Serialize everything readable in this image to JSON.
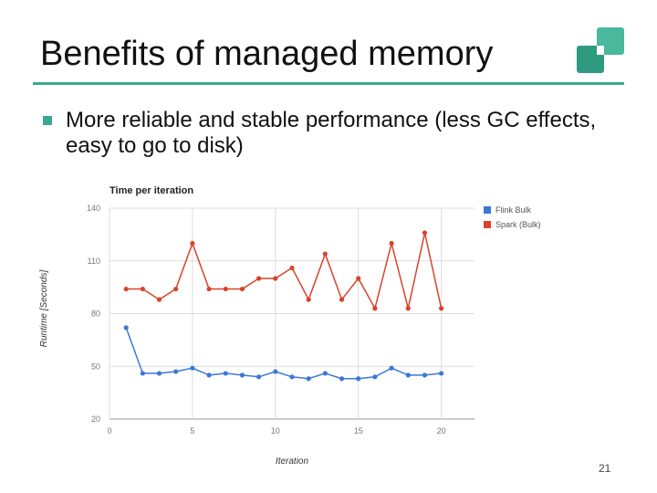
{
  "slide": {
    "title": "Benefits of managed memory",
    "bullet": "More reliable and stable performance (less GC effects, easy to go to disk)",
    "page_number": "21"
  },
  "colors": {
    "accent": "#3aa88f",
    "logo_dark": "#2e9b80",
    "logo_light": "#49b89b",
    "flink": "#3c78d8",
    "spark": "#d9432a"
  },
  "chart_data": {
    "type": "line",
    "title": "Time per iteration",
    "xlabel": "Iteration",
    "ylabel": "Runtime [Seconds]",
    "xlim": [
      0,
      22
    ],
    "ylim": [
      20,
      140
    ],
    "x_ticks": [
      0,
      5,
      10,
      15,
      20
    ],
    "y_ticks": [
      20,
      50,
      80,
      110,
      140
    ],
    "grid": true,
    "legend_position": "right",
    "series": [
      {
        "name": "Flink Bulk",
        "color": "#3c78d8",
        "x": [
          1,
          2,
          3,
          4,
          5,
          6,
          7,
          8,
          9,
          10,
          11,
          12,
          13,
          14,
          15,
          16,
          17,
          18,
          19,
          20
        ],
        "y": [
          72,
          46,
          46,
          47,
          49,
          45,
          46,
          45,
          44,
          47,
          44,
          43,
          46,
          43,
          43,
          44,
          49,
          45,
          45,
          46
        ]
      },
      {
        "name": "Spark (Bulk)",
        "color": "#d9432a",
        "x": [
          1,
          2,
          3,
          4,
          5,
          6,
          7,
          8,
          9,
          10,
          11,
          12,
          13,
          14,
          15,
          16,
          17,
          18,
          19,
          20
        ],
        "y": [
          94,
          94,
          88,
          94,
          120,
          94,
          94,
          94,
          100,
          100,
          106,
          88,
          114,
          88,
          100,
          83,
          120,
          83,
          126,
          83
        ]
      }
    ]
  }
}
